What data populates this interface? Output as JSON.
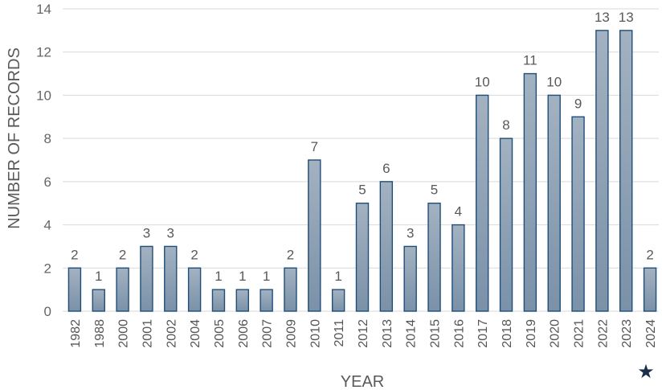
{
  "chart_data": {
    "type": "bar",
    "title": "",
    "xlabel": "YEAR",
    "ylabel": "NUMBER OF RECORDS",
    "categories": [
      "1982",
      "1988",
      "2000",
      "2001",
      "2002",
      "2004",
      "2005",
      "2006",
      "2007",
      "2009",
      "2010",
      "2011",
      "2012",
      "2013",
      "2014",
      "2015",
      "2016",
      "2017",
      "2018",
      "2019",
      "2020",
      "2021",
      "2022",
      "2023",
      "2024"
    ],
    "values": [
      2,
      1,
      2,
      3,
      3,
      2,
      1,
      1,
      1,
      2,
      7,
      1,
      5,
      6,
      3,
      5,
      4,
      10,
      8,
      11,
      10,
      9,
      13,
      13,
      2
    ],
    "ylim": [
      0,
      14
    ],
    "yticks": [
      0,
      2,
      4,
      6,
      8,
      10,
      12,
      14
    ],
    "grid": true,
    "legend": "none",
    "data_labels": true,
    "bar_gradient": [
      "#a3b2c1",
      "#7a91a8"
    ],
    "bar_edge_color": "#1f4e79",
    "star_marker": {
      "category": "2024",
      "glyph": "★",
      "color": "#1c2e4a",
      "icon": "star-icon"
    }
  }
}
